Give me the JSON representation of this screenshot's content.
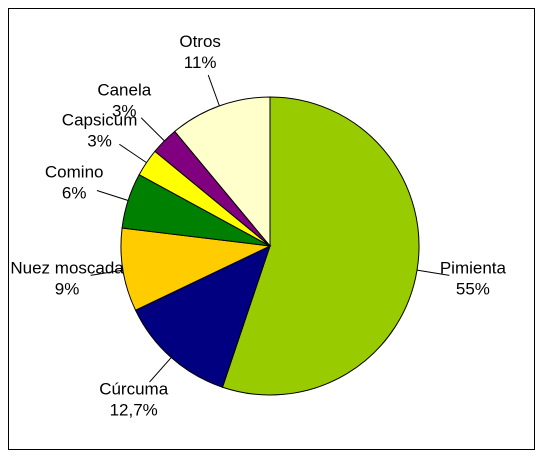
{
  "chart_data": {
    "type": "pie",
    "categories": [
      "Pimienta",
      "Cúrcuma",
      "Nuez moscada",
      "Comino",
      "Capsicum",
      "Canela",
      "Otros"
    ],
    "values": [
      55,
      12.7,
      9,
      6,
      3,
      3,
      11
    ],
    "value_labels": [
      "55%",
      "12,7%",
      "9%",
      "6%",
      "3%",
      "3%",
      "11%"
    ],
    "colors": [
      "#99cc00",
      "#000080",
      "#ffcc00",
      "#008000",
      "#ffff00",
      "#800080",
      "#ffffcc"
    ]
  }
}
